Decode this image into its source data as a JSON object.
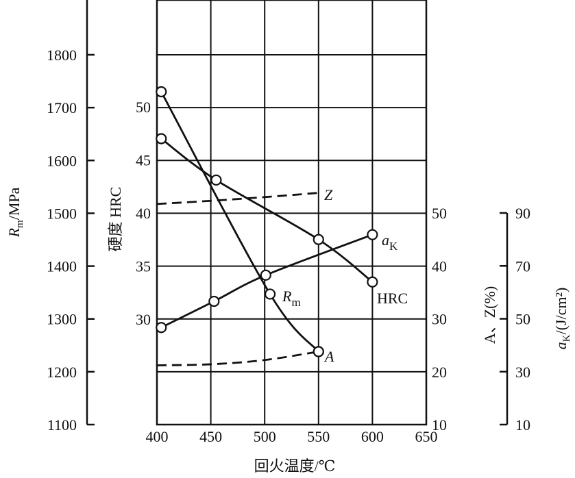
{
  "chart_data": {
    "type": "line",
    "xlabel": "回火温度/℃",
    "x_ticks": [
      "400",
      "450",
      "500",
      "550",
      "600",
      "650"
    ],
    "xlim": [
      400,
      650
    ],
    "axes": {
      "rm": {
        "label_main": "R",
        "label_sub": "m",
        "label_rest": "/MPa",
        "ylim": [
          1100,
          1800
        ],
        "ticks": [
          "1100",
          "1200",
          "1300",
          "1400",
          "1500",
          "1600",
          "1700",
          "1800"
        ]
      },
      "hrc": {
        "label": "硬度 HRC",
        "ylim": [
          30,
          50
        ],
        "ticks": [
          "30",
          "35",
          "40",
          "45",
          "50"
        ]
      },
      "az": {
        "label": "A、Z(%)",
        "ticks": [
          "10",
          "20",
          "30",
          "40",
          "50"
        ],
        "ylim": [
          10,
          50
        ]
      },
      "ak": {
        "label_main": "a",
        "label_sub": "K",
        "label_rest": "/(J/cm²)",
        "ticks": [
          "10",
          "30",
          "50",
          "70",
          "90"
        ],
        "ylim": [
          10,
          90
        ]
      }
    },
    "series": [
      {
        "name": "Rm",
        "label_main": "R",
        "label_sub": "m",
        "axis": "rm",
        "dashed": false,
        "markers": true,
        "x": [
          404,
          505,
          550
        ],
        "y": [
          1730,
          1347,
          1238
        ]
      },
      {
        "name": "HRC",
        "label_main": "HRC",
        "axis": "hrc",
        "dashed": false,
        "markers": true,
        "x": [
          404,
          455,
          550,
          600
        ],
        "y": [
          47.0,
          43.1,
          37.5,
          33.5
        ]
      },
      {
        "name": "aK",
        "label_main": "a",
        "label_sub": "K",
        "axis": "ak",
        "dashed": false,
        "markers": true,
        "x": [
          404,
          453,
          501,
          600
        ],
        "y": [
          46.7,
          56.6,
          66.5,
          81.8
        ]
      },
      {
        "name": "Z",
        "label_main": "Z",
        "axis": "az",
        "dashed": true,
        "markers": false,
        "x": [
          400,
          450,
          500,
          550
        ],
        "y": [
          51.7,
          52.3,
          53.0,
          53.8
        ]
      },
      {
        "name": "A",
        "label_main": "A",
        "axis": "az",
        "dashed": true,
        "markers": false,
        "end_marker": true,
        "x": [
          400,
          450,
          500,
          550
        ],
        "y": [
          21.2,
          21.4,
          22.2,
          23.8
        ]
      }
    ],
    "grid": true
  }
}
